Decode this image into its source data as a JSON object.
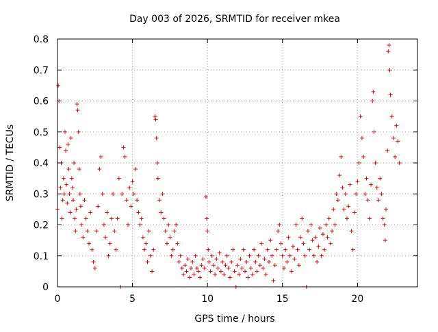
{
  "chart_data": {
    "type": "scatter",
    "title": "Day 003 of 2026, SRMTID for receiver mkea",
    "xlabel": "GPS time / hours",
    "ylabel": "SRMTID / TECUs",
    "xlim": [
      0,
      24
    ],
    "ylim": [
      0,
      0.8
    ],
    "xticks": [
      0,
      5,
      10,
      15,
      20
    ],
    "xtick_labels": [
      "0",
      "5",
      "10",
      "15",
      "20"
    ],
    "yticks": [
      0,
      0.1,
      0.2,
      0.3,
      0.4,
      0.5,
      0.6,
      0.7,
      0.8
    ],
    "ytick_labels": [
      "0",
      "0.1",
      "0.2",
      "0.3",
      "0.4",
      "0.5",
      "0.6",
      "0.7",
      "0.8"
    ],
    "grid": true,
    "marker": "+",
    "color": "#e00000",
    "series": [
      {
        "name": "SRMTID",
        "points": [
          [
            0.0,
            0.25
          ],
          [
            0.05,
            0.65
          ],
          [
            0.1,
            0.6
          ],
          [
            0.15,
            0.45
          ],
          [
            0.2,
            0.32
          ],
          [
            0.25,
            0.4
          ],
          [
            0.3,
            0.22
          ],
          [
            0.35,
            0.28
          ],
          [
            0.4,
            0.35
          ],
          [
            0.45,
            0.3
          ],
          [
            0.5,
            0.5
          ],
          [
            0.55,
            0.44
          ],
          [
            0.6,
            0.33
          ],
          [
            0.65,
            0.27
          ],
          [
            0.7,
            0.46
          ],
          [
            0.75,
            0.38
          ],
          [
            0.8,
            0.3
          ],
          [
            0.85,
            0.24
          ],
          [
            0.9,
            0.48
          ],
          [
            0.95,
            0.35
          ],
          [
            1.0,
            0.32
          ],
          [
            1.05,
            0.28
          ],
          [
            1.1,
            0.4
          ],
          [
            1.15,
            0.22
          ],
          [
            1.2,
            0.18
          ],
          [
            1.25,
            0.25
          ],
          [
            1.3,
            0.59
          ],
          [
            1.35,
            0.57
          ],
          [
            1.4,
            0.5
          ],
          [
            1.45,
            0.38
          ],
          [
            1.5,
            0.3
          ],
          [
            1.55,
            0.26
          ],
          [
            1.6,
            0.2
          ],
          [
            1.7,
            0.16
          ],
          [
            1.8,
            0.28
          ],
          [
            1.9,
            0.22
          ],
          [
            2.0,
            0.18
          ],
          [
            2.1,
            0.14
          ],
          [
            2.2,
            0.24
          ],
          [
            2.3,
            0.12
          ],
          [
            2.4,
            0.08
          ],
          [
            2.5,
            0.06
          ],
          [
            2.6,
            0.18
          ],
          [
            2.7,
            0.26
          ],
          [
            2.8,
            0.38
          ],
          [
            2.9,
            0.42
          ],
          [
            3.0,
            0.3
          ],
          [
            3.1,
            0.2
          ],
          [
            3.2,
            0.16
          ],
          [
            3.3,
            0.24
          ],
          [
            3.4,
            0.1
          ],
          [
            3.5,
            0.14
          ],
          [
            3.6,
            0.22
          ],
          [
            3.7,
            0.3
          ],
          [
            3.8,
            0.18
          ],
          [
            3.9,
            0.12
          ],
          [
            4.0,
            0.22
          ],
          [
            4.1,
            0.35
          ],
          [
            4.2,
            0.0
          ],
          [
            4.3,
            0.3
          ],
          [
            4.4,
            0.45
          ],
          [
            4.5,
            0.42
          ],
          [
            4.6,
            0.28
          ],
          [
            4.7,
            0.2
          ],
          [
            4.8,
            0.32
          ],
          [
            4.9,
            0.26
          ],
          [
            5.0,
            0.34
          ],
          [
            5.1,
            0.3
          ],
          [
            5.2,
            0.38
          ],
          [
            5.3,
            0.28
          ],
          [
            5.4,
            0.24
          ],
          [
            5.5,
            0.2
          ],
          [
            5.6,
            0.22
          ],
          [
            5.7,
            0.16
          ],
          [
            5.8,
            0.12
          ],
          [
            5.9,
            0.14
          ],
          [
            6.0,
            0.08
          ],
          [
            6.1,
            0.18
          ],
          [
            6.2,
            0.1
          ],
          [
            6.3,
            0.05
          ],
          [
            6.4,
            0.12
          ],
          [
            6.5,
            0.55
          ],
          [
            6.55,
            0.54
          ],
          [
            6.6,
            0.48
          ],
          [
            6.65,
            0.4
          ],
          [
            6.7,
            0.35
          ],
          [
            6.8,
            0.28
          ],
          [
            6.9,
            0.24
          ],
          [
            7.0,
            0.3
          ],
          [
            7.1,
            0.22
          ],
          [
            7.2,
            0.18
          ],
          [
            7.3,
            0.14
          ],
          [
            7.4,
            0.2
          ],
          [
            7.5,
            0.16
          ],
          [
            7.6,
            0.1
          ],
          [
            7.7,
            0.12
          ],
          [
            7.8,
            0.18
          ],
          [
            7.9,
            0.2
          ],
          [
            8.0,
            0.14
          ],
          [
            8.1,
            0.08
          ],
          [
            8.2,
            0.1
          ],
          [
            8.3,
            0.06
          ],
          [
            8.4,
            0.04
          ],
          [
            8.5,
            0.07
          ],
          [
            8.6,
            0.05
          ],
          [
            8.7,
            0.09
          ],
          [
            8.8,
            0.03
          ],
          [
            8.9,
            0.06
          ],
          [
            9.0,
            0.08
          ],
          [
            9.1,
            0.04
          ],
          [
            9.2,
            0.1
          ],
          [
            9.3,
            0.06
          ],
          [
            9.4,
            0.05
          ],
          [
            9.5,
            0.03
          ],
          [
            9.6,
            0.07
          ],
          [
            9.7,
            0.09
          ],
          [
            9.8,
            0.06
          ],
          [
            9.9,
            0.29
          ],
          [
            9.95,
            0.22
          ],
          [
            10.0,
            0.18
          ],
          [
            10.05,
            0.12
          ],
          [
            10.1,
            0.08
          ],
          [
            10.2,
            0.05
          ],
          [
            10.3,
            0.1
          ],
          [
            10.4,
            0.07
          ],
          [
            10.5,
            0.04
          ],
          [
            10.6,
            0.09
          ],
          [
            10.7,
            0.06
          ],
          [
            10.8,
            0.11
          ],
          [
            10.9,
            0.05
          ],
          [
            11.0,
            0.08
          ],
          [
            11.1,
            0.04
          ],
          [
            11.2,
            0.07
          ],
          [
            11.3,
            0.1
          ],
          [
            11.4,
            0.06
          ],
          [
            11.5,
            0.03
          ],
          [
            11.6,
            0.08
          ],
          [
            11.7,
            0.12
          ],
          [
            11.8,
            0.05
          ],
          [
            11.9,
            0.0
          ],
          [
            12.0,
            0.07
          ],
          [
            12.1,
            0.04
          ],
          [
            12.2,
            0.09
          ],
          [
            12.3,
            0.06
          ],
          [
            12.4,
            0.12
          ],
          [
            12.5,
            0.05
          ],
          [
            12.6,
            0.08
          ],
          [
            12.7,
            0.03
          ],
          [
            12.8,
            0.1
          ],
          [
            12.9,
            0.06
          ],
          [
            13.0,
            0.04
          ],
          [
            13.1,
            0.12
          ],
          [
            13.2,
            0.08
          ],
          [
            13.3,
            0.05
          ],
          [
            13.4,
            0.1
          ],
          [
            13.5,
            0.07
          ],
          [
            13.6,
            0.14
          ],
          [
            13.7,
            0.06
          ],
          [
            13.8,
            0.09
          ],
          [
            13.9,
            0.04
          ],
          [
            14.0,
            0.12
          ],
          [
            14.1,
            0.08
          ],
          [
            14.2,
            0.15
          ],
          [
            14.3,
            0.1
          ],
          [
            14.4,
            0.02
          ],
          [
            14.5,
            0.07
          ],
          [
            14.6,
            0.12
          ],
          [
            14.7,
            0.18
          ],
          [
            14.8,
            0.2
          ],
          [
            14.9,
            0.14
          ],
          [
            15.0,
            0.1
          ],
          [
            15.1,
            0.06
          ],
          [
            15.2,
            0.12
          ],
          [
            15.3,
            0.08
          ],
          [
            15.4,
            0.16
          ],
          [
            15.5,
            0.1
          ],
          [
            15.6,
            0.05
          ],
          [
            15.7,
            0.13
          ],
          [
            15.8,
            0.09
          ],
          [
            15.9,
            0.2
          ],
          [
            16.0,
            0.12
          ],
          [
            16.1,
            0.07
          ],
          [
            16.2,
            0.16
          ],
          [
            16.3,
            0.22
          ],
          [
            16.4,
            0.14
          ],
          [
            16.5,
            0.1
          ],
          [
            16.6,
            0.0
          ],
          [
            16.7,
            0.18
          ],
          [
            16.8,
            0.12
          ],
          [
            16.9,
            0.2
          ],
          [
            17.0,
            0.15
          ],
          [
            17.1,
            0.1
          ],
          [
            17.2,
            0.16
          ],
          [
            17.3,
            0.08
          ],
          [
            17.4,
            0.13
          ],
          [
            17.5,
            0.19
          ],
          [
            17.6,
            0.1
          ],
          [
            17.7,
            0.17
          ],
          [
            17.8,
            0.12
          ],
          [
            17.9,
            0.2
          ],
          [
            18.0,
            0.16
          ],
          [
            18.1,
            0.22
          ],
          [
            18.2,
            0.14
          ],
          [
            18.3,
            0.18
          ],
          [
            18.4,
            0.25
          ],
          [
            18.5,
            0.2
          ],
          [
            18.6,
            0.3
          ],
          [
            18.7,
            0.28
          ],
          [
            18.8,
            0.36
          ],
          [
            18.9,
            0.42
          ],
          [
            19.0,
            0.32
          ],
          [
            19.1,
            0.25
          ],
          [
            19.2,
            0.3
          ],
          [
            19.3,
            0.22
          ],
          [
            19.4,
            0.26
          ],
          [
            19.5,
            0.33
          ],
          [
            19.6,
            0.18
          ],
          [
            19.7,
            0.12
          ],
          [
            19.8,
            0.24
          ],
          [
            19.9,
            0.3
          ],
          [
            20.0,
            0.34
          ],
          [
            20.1,
            0.4
          ],
          [
            20.2,
            0.55
          ],
          [
            20.3,
            0.48
          ],
          [
            20.4,
            0.42
          ],
          [
            20.5,
            0.3
          ],
          [
            20.6,
            0.35
          ],
          [
            20.7,
            0.28
          ],
          [
            20.8,
            0.22
          ],
          [
            20.9,
            0.33
          ],
          [
            21.0,
            0.6
          ],
          [
            21.05,
            0.63
          ],
          [
            21.1,
            0.5
          ],
          [
            21.2,
            0.4
          ],
          [
            21.3,
            0.32
          ],
          [
            21.4,
            0.28
          ],
          [
            21.5,
            0.35
          ],
          [
            21.6,
            0.3
          ],
          [
            21.7,
            0.22
          ],
          [
            21.8,
            0.2
          ],
          [
            21.85,
            0.15
          ],
          [
            21.9,
            0.25
          ],
          [
            22.0,
            0.44
          ],
          [
            22.05,
            0.76
          ],
          [
            22.1,
            0.78
          ],
          [
            22.15,
            0.7
          ],
          [
            22.2,
            0.62
          ],
          [
            22.3,
            0.55
          ],
          [
            22.4,
            0.48
          ],
          [
            22.5,
            0.42
          ],
          [
            22.6,
            0.52
          ],
          [
            22.7,
            0.47
          ],
          [
            22.8,
            0.4
          ]
        ]
      }
    ]
  }
}
